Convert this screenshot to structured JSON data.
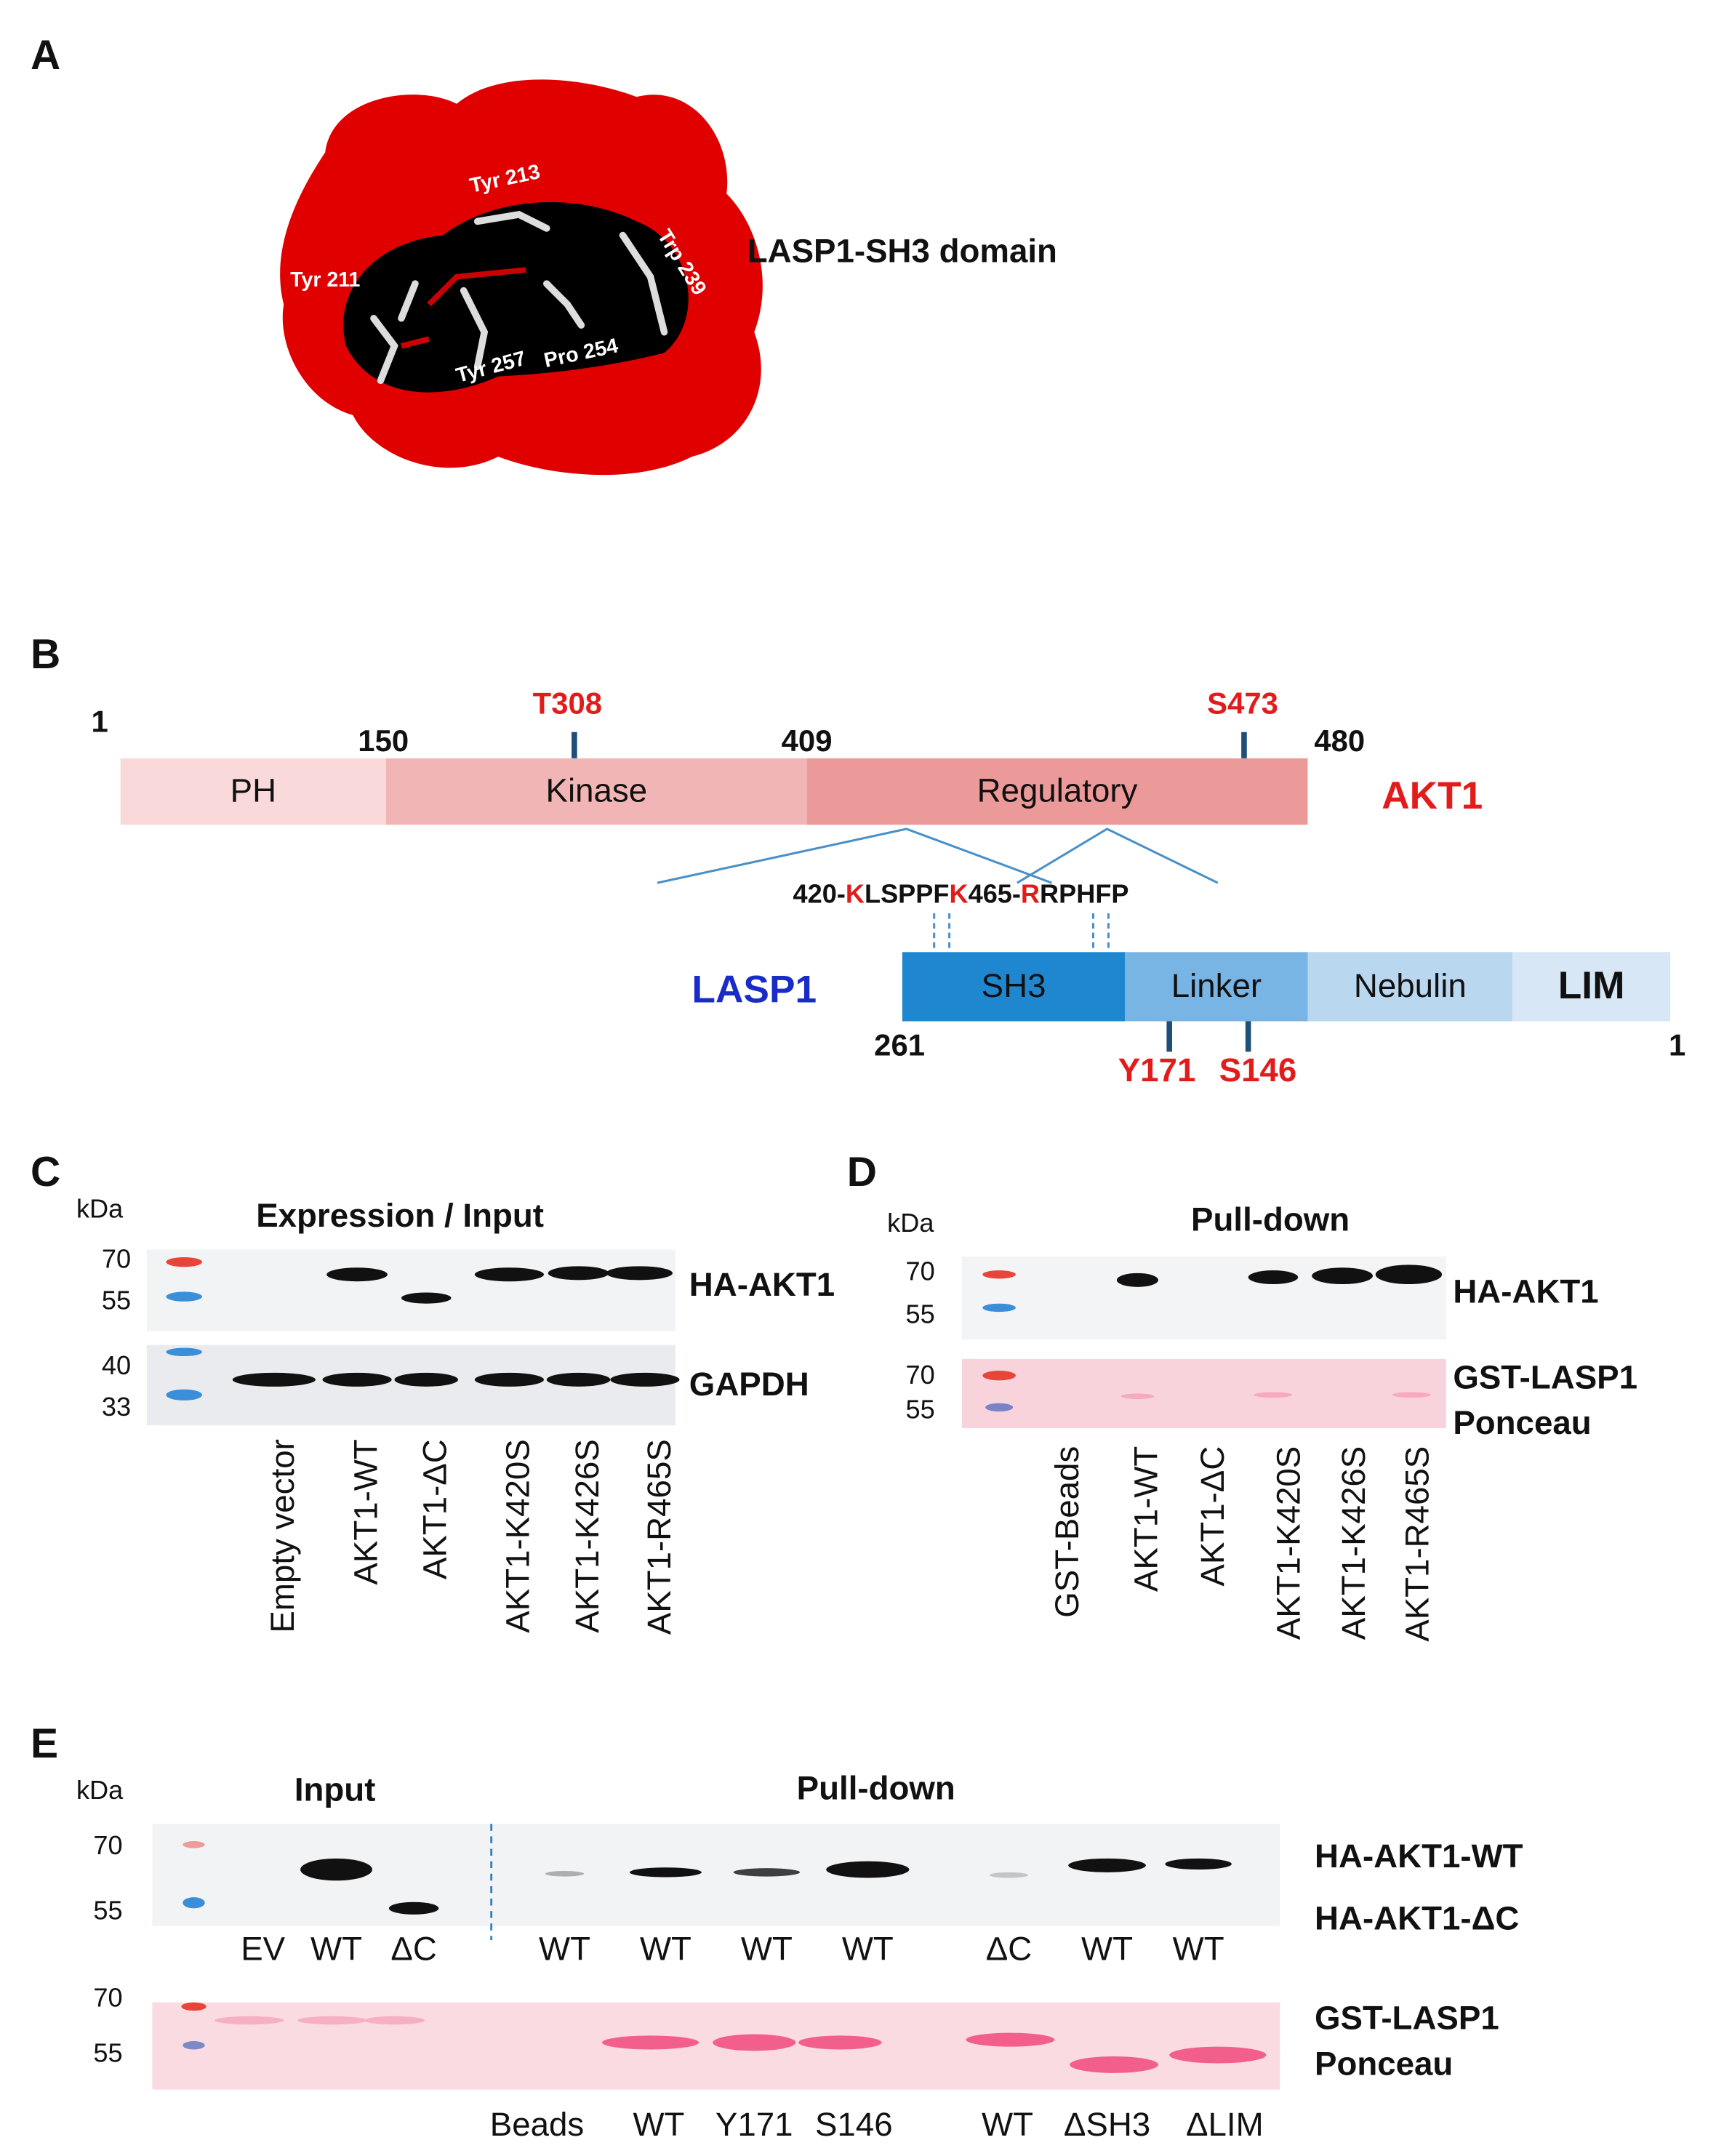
{
  "panel_a": {
    "label": "A",
    "residues": [
      "Tyr 213",
      "Tyr 211",
      "Trp 239",
      "Tyr 257",
      "Pro 254"
    ],
    "caption": "LASP1-SH3 domain"
  },
  "panel_b": {
    "label": "B",
    "akt1": {
      "name": "AKT1",
      "positions": [
        "1",
        "150",
        "409",
        "480"
      ],
      "sites": [
        "T308",
        "S473"
      ],
      "domains": [
        "PH",
        "Kinase",
        "Regulatory"
      ]
    },
    "motif": [
      {
        "text": "420-",
        "red": false
      },
      {
        "text": "K",
        "red": true
      },
      {
        "text": "LSPPF",
        "red": false
      },
      {
        "text": "K",
        "red": true
      },
      {
        "text": "465-",
        "red": false
      },
      {
        "text": "R",
        "red": true
      },
      {
        "text": "RPHFP",
        "red": false
      }
    ],
    "lasp1": {
      "name": "LASP1",
      "domains": [
        "SH3",
        "Linker",
        "Nebulin",
        "LIM"
      ],
      "positions": [
        "261",
        "1"
      ],
      "sites": [
        "Y171",
        "S146"
      ]
    }
  },
  "panel_c": {
    "label": "C",
    "kda": "kDa",
    "title": "Expression / Input",
    "markers": [
      "70",
      "55",
      "40",
      "33"
    ],
    "blots": [
      "HA-AKT1",
      "GAPDH"
    ],
    "lanes": [
      "Empty vector",
      "AKT1-WT",
      "AKT1-ΔC",
      "AKT1-K420S",
      "AKT1-K426S",
      "AKT1-R465S"
    ]
  },
  "panel_d": {
    "label": "D",
    "kda": "kDa",
    "title": "Pull-down",
    "markers": [
      "70",
      "55",
      "70",
      "55"
    ],
    "blots": [
      "HA-AKT1",
      "GST-LASP1",
      "Ponceau"
    ],
    "lanes": [
      "GST-Beads",
      "AKT1-WT",
      "AKT1-ΔC",
      "AKT1-K420S",
      "AKT1-K426S",
      "AKT1-R465S"
    ]
  },
  "panel_e": {
    "label": "E",
    "kda": "kDa",
    "input": "Input",
    "pulldown": "Pull-down",
    "markers": [
      "70",
      "55",
      "70",
      "55"
    ],
    "top_lanes": [
      "EV",
      "WT",
      "ΔC",
      "WT",
      "WT",
      "WT",
      "WT",
      "ΔC",
      "WT",
      "WT"
    ],
    "blots": [
      "HA-AKT1-WT",
      "HA-AKT1-ΔC",
      "GST-LASP1",
      "Ponceau"
    ],
    "bottom_lanes": [
      "Beads",
      "WT",
      "Y171",
      "S146",
      "WT",
      "ΔSH3",
      "ΔLIM"
    ]
  }
}
